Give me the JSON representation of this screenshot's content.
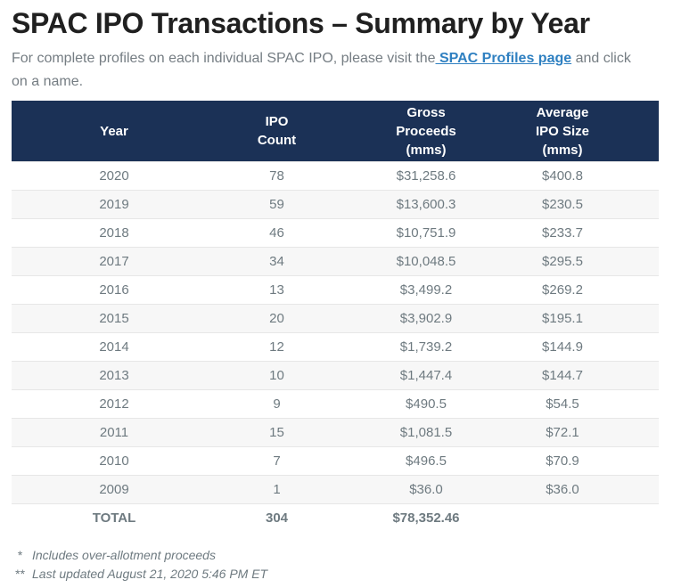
{
  "page": {
    "title": "SPAC IPO Transactions – Summary by Year",
    "intro_before": "For complete profiles on each individual SPAC IPO, please visit the",
    "intro_link": " SPAC Profiles page",
    "intro_after": " and click on a name."
  },
  "colors": {
    "header_bg": "#1b3156",
    "header_text": "#ffffff",
    "cell_text": "#6e7a80",
    "title_text": "#202020",
    "link": "#2f80c1",
    "alt_row_bg": "#f7f7f7",
    "row_border": "#e7e7e7"
  },
  "table": {
    "columns": [
      {
        "lines": [
          "Year"
        ]
      },
      {
        "lines": [
          "IPO",
          "Count"
        ]
      },
      {
        "lines": [
          "Gross",
          "Proceeds",
          "(mms)"
        ]
      },
      {
        "lines": [
          "Average",
          "IPO Size",
          "(mms)"
        ]
      }
    ],
    "rows": [
      {
        "year": "2020",
        "ipo_count": "78",
        "gross_proceeds": "$31,258.6",
        "avg_ipo_size": "$400.8"
      },
      {
        "year": "2019",
        "ipo_count": "59",
        "gross_proceeds": "$13,600.3",
        "avg_ipo_size": "$230.5"
      },
      {
        "year": "2018",
        "ipo_count": "46",
        "gross_proceeds": "$10,751.9",
        "avg_ipo_size": "$233.7"
      },
      {
        "year": "2017",
        "ipo_count": "34",
        "gross_proceeds": "$10,048.5",
        "avg_ipo_size": "$295.5"
      },
      {
        "year": "2016",
        "ipo_count": "13",
        "gross_proceeds": "$3,499.2",
        "avg_ipo_size": "$269.2"
      },
      {
        "year": "2015",
        "ipo_count": "20",
        "gross_proceeds": "$3,902.9",
        "avg_ipo_size": "$195.1"
      },
      {
        "year": "2014",
        "ipo_count": "12",
        "gross_proceeds": "$1,739.2",
        "avg_ipo_size": "$144.9"
      },
      {
        "year": "2013",
        "ipo_count": "10",
        "gross_proceeds": "$1,447.4",
        "avg_ipo_size": "$144.7"
      },
      {
        "year": "2012",
        "ipo_count": "9",
        "gross_proceeds": "$490.5",
        "avg_ipo_size": "$54.5"
      },
      {
        "year": "2011",
        "ipo_count": "15",
        "gross_proceeds": "$1,081.5",
        "avg_ipo_size": "$72.1"
      },
      {
        "year": "2010",
        "ipo_count": "7",
        "gross_proceeds": "$496.5",
        "avg_ipo_size": "$70.9"
      },
      {
        "year": "2009",
        "ipo_count": "1",
        "gross_proceeds": "$36.0",
        "avg_ipo_size": "$36.0"
      }
    ],
    "total_row": {
      "year": "TOTAL",
      "ipo_count": "304",
      "gross_proceeds": "$78,352.46",
      "avg_ipo_size": ""
    }
  },
  "footnotes": [
    {
      "marker": "*",
      "text": "Includes over-allotment proceeds"
    },
    {
      "marker": "**",
      "text": "Last updated August 21, 2020 5:46 PM ET"
    }
  ]
}
